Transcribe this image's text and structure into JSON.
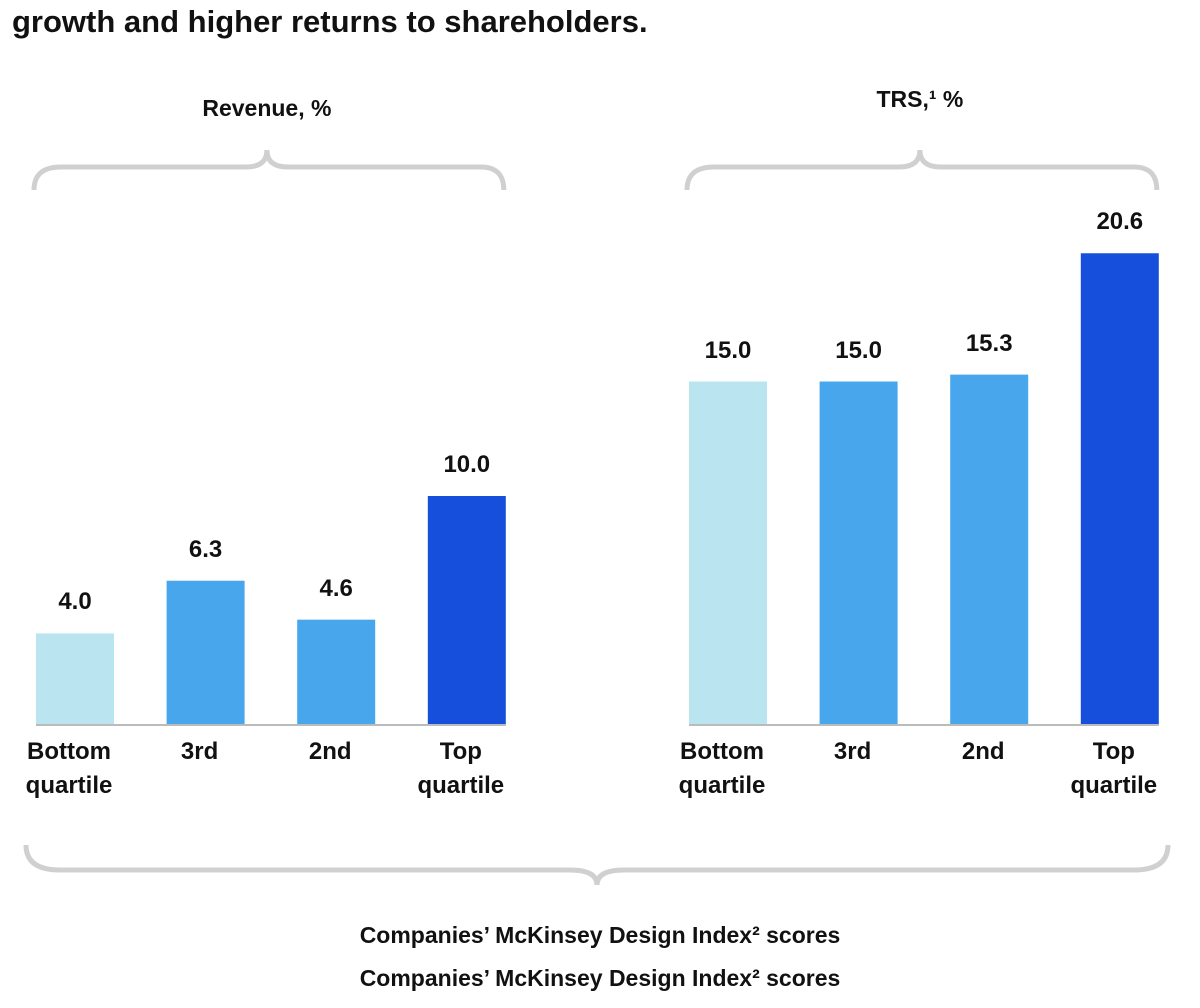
{
  "title": "growth and higher returns to shareholders.",
  "x_labels": [
    "Companies’ McKinsey Design Index² scores",
    "Companies’ McKinsey Design Index² scores"
  ],
  "chart_data": [
    {
      "type": "bar",
      "title": "Revenue, %",
      "categories": [
        "Bottom quartile",
        "3rd",
        "2nd",
        "Top quartile"
      ],
      "values": [
        4.0,
        6.3,
        4.6,
        10.0
      ],
      "value_labels": [
        "4.0",
        "6.3",
        "4.6",
        "10.0"
      ],
      "colors": [
        "#b9e4f0",
        "#48a7ec",
        "#48a7ec",
        "#154fdc"
      ]
    },
    {
      "type": "bar",
      "title": "TRS,¹ %",
      "categories": [
        "Bottom quartile",
        "3rd",
        "2nd",
        "Top quartile"
      ],
      "values": [
        15.0,
        15.0,
        15.3,
        20.6
      ],
      "value_labels": [
        "15.0",
        "15.0",
        "15.3",
        "20.6"
      ],
      "colors": [
        "#b9e4f0",
        "#48a7ec",
        "#48a7ec",
        "#154fdc"
      ]
    }
  ]
}
